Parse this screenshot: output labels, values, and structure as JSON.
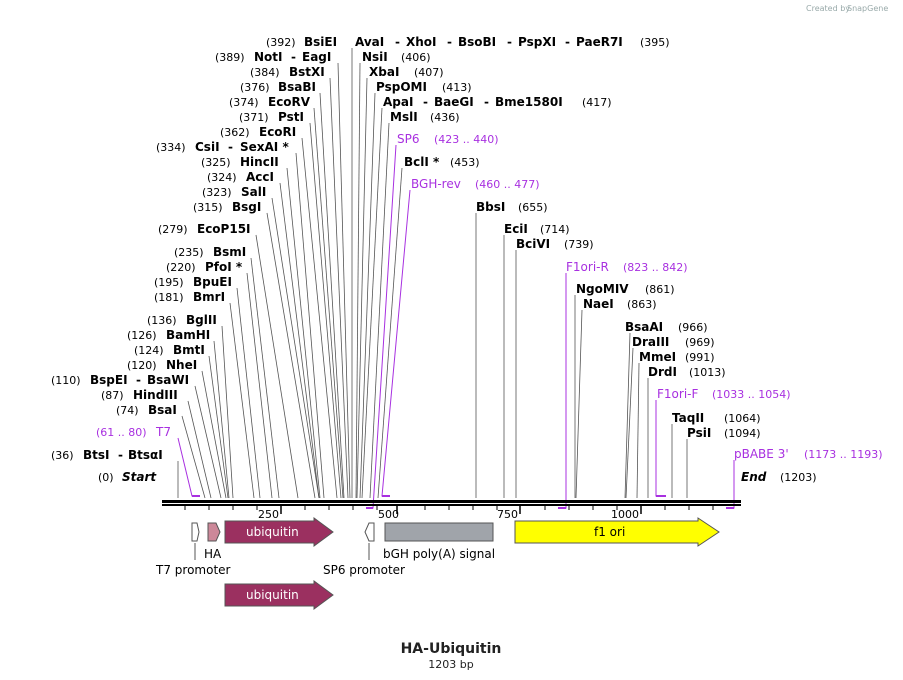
{
  "brand": {
    "created_by": "Created by",
    "name": "SnapGene"
  },
  "map": {
    "title": "HA-Ubiquitin",
    "length_label": "1203 bp",
    "length": 1203,
    "start": {
      "pos": "(0)",
      "label": "Start"
    },
    "end": {
      "pos": "(1203)",
      "label": "End"
    },
    "ticks": [
      {
        "value": 250,
        "label": "250"
      },
      {
        "value": 500,
        "label": "500"
      },
      {
        "value": 750,
        "label": "750"
      },
      {
        "value": 1000,
        "label": "1000"
      }
    ]
  },
  "sites_left": [
    {
      "pos": "(392)",
      "names": [
        "BsiEI",
        "AvaI",
        "XhoI",
        "BsoBI",
        "PspXI",
        "PaeR7I"
      ],
      "end_pos": "(395)",
      "bp": 392
    },
    {
      "pos": "(389)",
      "names": [
        "NotI",
        "EagI"
      ],
      "bp": 389
    },
    {
      "pos": "(384)",
      "names": [
        "BstXI"
      ],
      "bp": 384
    },
    {
      "pos": "(376)",
      "names": [
        "BsaBI"
      ],
      "bp": 376
    },
    {
      "pos": "(374)",
      "names": [
        "EcoRV"
      ],
      "bp": 374
    },
    {
      "pos": "(371)",
      "names": [
        "PstI"
      ],
      "bp": 371
    },
    {
      "pos": "(362)",
      "names": [
        "EcoRI"
      ],
      "bp": 362
    },
    {
      "pos": "(334)",
      "names": [
        "CsiI",
        "SexAI *"
      ],
      "bp": 334
    },
    {
      "pos": "(325)",
      "names": [
        "HincII"
      ],
      "bp": 325
    },
    {
      "pos": "(324)",
      "names": [
        "AccI"
      ],
      "bp": 324
    },
    {
      "pos": "(323)",
      "names": [
        "SalI"
      ],
      "bp": 323
    },
    {
      "pos": "(315)",
      "names": [
        "BsgI"
      ],
      "bp": 315
    },
    {
      "pos": "(279)",
      "names": [
        "EcoP15I"
      ],
      "bp": 279
    },
    {
      "pos": "(235)",
      "names": [
        "BsmI"
      ],
      "bp": 235
    },
    {
      "pos": "(220)",
      "names": [
        "PfoI *"
      ],
      "bp": 220
    },
    {
      "pos": "(195)",
      "names": [
        "BpuEI"
      ],
      "bp": 195
    },
    {
      "pos": "(181)",
      "names": [
        "BmrI"
      ],
      "bp": 181
    },
    {
      "pos": "(136)",
      "names": [
        "BglII"
      ],
      "bp": 136
    },
    {
      "pos": "(126)",
      "names": [
        "BamHI"
      ],
      "bp": 126
    },
    {
      "pos": "(124)",
      "names": [
        "BmtI"
      ],
      "bp": 124
    },
    {
      "pos": "(120)",
      "names": [
        "NheI"
      ],
      "bp": 120
    },
    {
      "pos": "(110)",
      "names": [
        "BspEI",
        "BsaWI"
      ],
      "bp": 110
    },
    {
      "pos": "(87)",
      "names": [
        "HindIII"
      ],
      "bp": 87
    },
    {
      "pos": "(74)",
      "names": [
        "BsaI"
      ],
      "bp": 74
    },
    {
      "pos": "(36)",
      "names": [
        "BtsI",
        "BtsαI"
      ],
      "bp": 36
    }
  ],
  "sites_right": [
    {
      "names": [
        "NsiI"
      ],
      "pos": "(406)",
      "bp": 406
    },
    {
      "names": [
        "XbaI"
      ],
      "pos": "(407)",
      "bp": 407
    },
    {
      "names": [
        "PspOMI"
      ],
      "pos": "(413)",
      "bp": 413
    },
    {
      "names": [
        "ApaI",
        "BaeGI",
        "Bme1580I"
      ],
      "pos": "(417)",
      "bp": 417
    },
    {
      "names": [
        "MslI"
      ],
      "pos": "(436)",
      "bp": 436
    },
    {
      "names": [
        "BclI *"
      ],
      "pos": "(453)",
      "bp": 453
    },
    {
      "names": [
        "BbsI"
      ],
      "pos": "(655)",
      "bp": 655
    },
    {
      "names": [
        "EciI"
      ],
      "pos": "(714)",
      "bp": 714
    },
    {
      "names": [
        "BciVI"
      ],
      "pos": "(739)",
      "bp": 739
    },
    {
      "names": [
        "NgoMIV"
      ],
      "pos": "(861)",
      "bp": 861
    },
    {
      "names": [
        "NaeI"
      ],
      "pos": "(863)",
      "bp": 863
    },
    {
      "names": [
        "BsaAI"
      ],
      "pos": "(966)",
      "bp": 966
    },
    {
      "names": [
        "DraIII"
      ],
      "pos": "(969)",
      "bp": 969
    },
    {
      "names": [
        "MmeI"
      ],
      "pos": "(991)",
      "bp": 991
    },
    {
      "names": [
        "DrdI"
      ],
      "pos": "(1013)",
      "bp": 1013
    },
    {
      "names": [
        "TaqII"
      ],
      "pos": "(1064)",
      "bp": 1064
    },
    {
      "names": [
        "PsiI"
      ],
      "pos": "(1094)",
      "bp": 1094
    }
  ],
  "primers": [
    {
      "name": "T7",
      "range": "(61 .. 80)",
      "start": 61,
      "end": 80
    },
    {
      "name": "SP6",
      "range": "(423 .. 440)",
      "start": 423,
      "end": 440
    },
    {
      "name": "BGH-rev",
      "range": "(460 .. 477)",
      "start": 460,
      "end": 477
    },
    {
      "name": "F1ori-R",
      "range": "(823 .. 842)",
      "start": 823,
      "end": 842
    },
    {
      "name": "F1ori-F",
      "range": "(1033 .. 1054)",
      "start": 1033,
      "end": 1054
    },
    {
      "name": "pBABE 3'",
      "range": "(1173 .. 1193)",
      "start": 1173,
      "end": 1193
    }
  ],
  "features": [
    {
      "name": "T7 promoter",
      "color": "#ffffff"
    },
    {
      "name": "HA",
      "color": "#cc8899"
    },
    {
      "name": "ubiquitin",
      "color": "#9b3060"
    },
    {
      "name": "SP6 promoter",
      "color": "#ffffff"
    },
    {
      "name": "bGH poly(A) signal",
      "color": "#a0a4aa"
    },
    {
      "name": "f1 ori",
      "color": "#ffff00"
    },
    {
      "name": "ubiquitin",
      "color": "#9b3060"
    }
  ],
  "colors": {
    "primer": "#a830e0",
    "backbone": "#000000"
  }
}
